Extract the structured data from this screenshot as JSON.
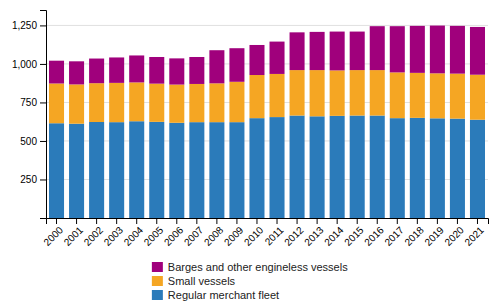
{
  "chart_data": {
    "type": "bar",
    "stacked": true,
    "grid": true,
    "legend": "bottom",
    "categories": [
      "2000",
      "2001",
      "2002",
      "2003",
      "2004",
      "2005",
      "2006",
      "2007",
      "2008",
      "2009",
      "2010",
      "2011",
      "2012",
      "2013",
      "2014",
      "2015",
      "2016",
      "2017",
      "2018",
      "2019",
      "2020",
      "2021"
    ],
    "series": [
      {
        "name": "Regular merchant fleet",
        "color": "#2b7bba",
        "values": [
          615,
          612,
          623,
          622,
          628,
          624,
          618,
          622,
          622,
          622,
          648,
          655,
          665,
          660,
          663,
          665,
          665,
          648,
          650,
          647,
          645,
          638
        ]
      },
      {
        "name": "Small vessels",
        "color": "#f5a623",
        "values": [
          258,
          255,
          252,
          255,
          252,
          248,
          248,
          248,
          252,
          262,
          280,
          280,
          295,
          300,
          295,
          295,
          295,
          297,
          292,
          292,
          292,
          292
        ]
      },
      {
        "name": "Barges and other engineless vessels",
        "color": "#a0007c",
        "values": [
          148,
          150,
          160,
          165,
          175,
          173,
          170,
          175,
          215,
          218,
          195,
          210,
          245,
          248,
          252,
          250,
          285,
          300,
          305,
          310,
          310,
          310
        ]
      }
    ],
    "ylim": [
      0,
      1350
    ],
    "yticks": [
      250,
      500,
      750,
      {
        "value": 1000,
        "label": "1,000"
      },
      {
        "value": 1250,
        "label": "1,250"
      }
    ]
  }
}
